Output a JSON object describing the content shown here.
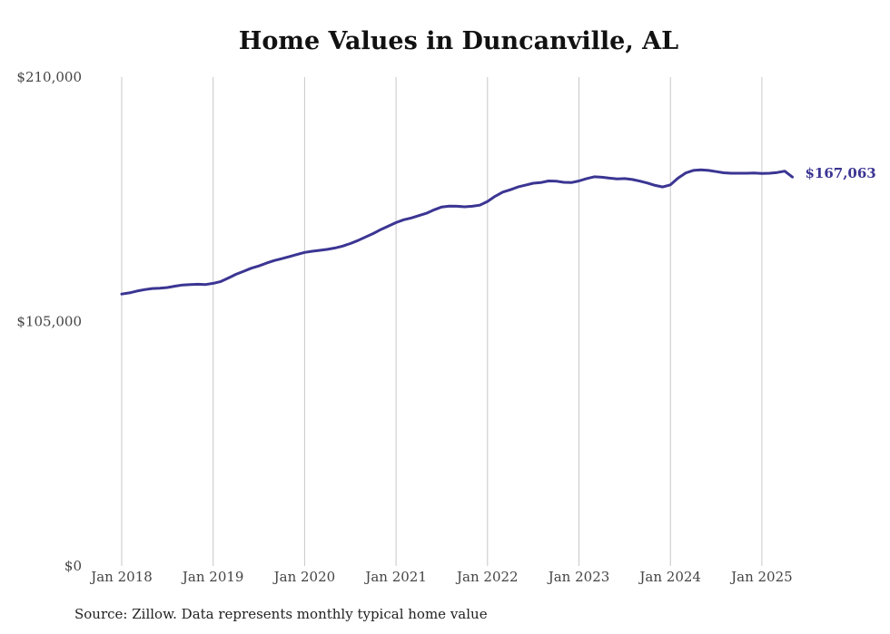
{
  "title": "Home Values in Duncanville, AL",
  "source": "Source: Zillow. Data represents monthly typical home value",
  "colors": {
    "line": "#3b3593",
    "grid": "#c8c8c8",
    "text": "#444444"
  },
  "chart_data": {
    "type": "line",
    "title": "Home Values in Duncanville, AL",
    "xlabel": "",
    "ylabel": "",
    "ylim": [
      0,
      210000
    ],
    "y_ticks": [
      0,
      105000,
      210000
    ],
    "y_tick_labels": [
      "$0",
      "$105,000",
      "$210,000"
    ],
    "x_tick_labels": [
      "Jan 2018",
      "Jan 2019",
      "Jan 2020",
      "Jan 2021",
      "Jan 2022",
      "Jan 2023",
      "Jan 2024",
      "Jan 2025"
    ],
    "x_tick_dates": [
      "2018-01",
      "2019-01",
      "2020-01",
      "2021-01",
      "2022-01",
      "2023-01",
      "2024-01",
      "2025-01"
    ],
    "grid": "vertical",
    "end_label": "$167,063",
    "series": [
      {
        "x": [
          "2018-01",
          "2018-02",
          "2018-03",
          "2018-04",
          "2018-05",
          "2018-06",
          "2018-07",
          "2018-08",
          "2018-09",
          "2018-10",
          "2018-11",
          "2018-12",
          "2019-01",
          "2019-02",
          "2019-03",
          "2019-04",
          "2019-05",
          "2019-06",
          "2019-07",
          "2019-08",
          "2019-09",
          "2019-10",
          "2019-11",
          "2019-12",
          "2020-01",
          "2020-02",
          "2020-03",
          "2020-04",
          "2020-05",
          "2020-06",
          "2020-07",
          "2020-08",
          "2020-09",
          "2020-10",
          "2020-11",
          "2020-12",
          "2021-01",
          "2021-02",
          "2021-03",
          "2021-04",
          "2021-05",
          "2021-06",
          "2021-07",
          "2021-08",
          "2021-09",
          "2021-10",
          "2021-11",
          "2021-12",
          "2022-01",
          "2022-02",
          "2022-03",
          "2022-04",
          "2022-05",
          "2022-06",
          "2022-07",
          "2022-08",
          "2022-09",
          "2022-10",
          "2022-11",
          "2022-12",
          "2023-01",
          "2023-02",
          "2023-03",
          "2023-04",
          "2023-05",
          "2023-06",
          "2023-07",
          "2023-08",
          "2023-09",
          "2023-10",
          "2023-11",
          "2023-12",
          "2024-01",
          "2024-02",
          "2024-03",
          "2024-04",
          "2024-05",
          "2024-06",
          "2024-07",
          "2024-08",
          "2024-09",
          "2024-10",
          "2024-11",
          "2024-12",
          "2025-01",
          "2025-02",
          "2025-03",
          "2025-04",
          "2025-05"
        ],
        "values": [
          116800,
          117300,
          118100,
          118700,
          119200,
          119300,
          119600,
          120200,
          120700,
          120900,
          121000,
          120900,
          121400,
          122200,
          123700,
          125300,
          126600,
          127900,
          128900,
          130100,
          131200,
          132000,
          132900,
          133800,
          134700,
          135200,
          135600,
          136000,
          136600,
          137400,
          138500,
          139800,
          141300,
          142800,
          144500,
          146000,
          147500,
          148700,
          149500,
          150500,
          151500,
          153000,
          154200,
          154600,
          154500,
          154300,
          154500,
          155000,
          156600,
          158800,
          160600,
          161600,
          162800,
          163600,
          164400,
          164700,
          165400,
          165300,
          164800,
          164700,
          165400,
          166400,
          167200,
          167000,
          166600,
          166300,
          166400,
          166000,
          165300,
          164500,
          163500,
          162800,
          163700,
          166600,
          168800,
          169900,
          170200,
          169900,
          169400,
          168900,
          168700,
          168700,
          168700,
          168800,
          168600,
          168700,
          169000,
          169600,
          167063
        ]
      }
    ]
  }
}
